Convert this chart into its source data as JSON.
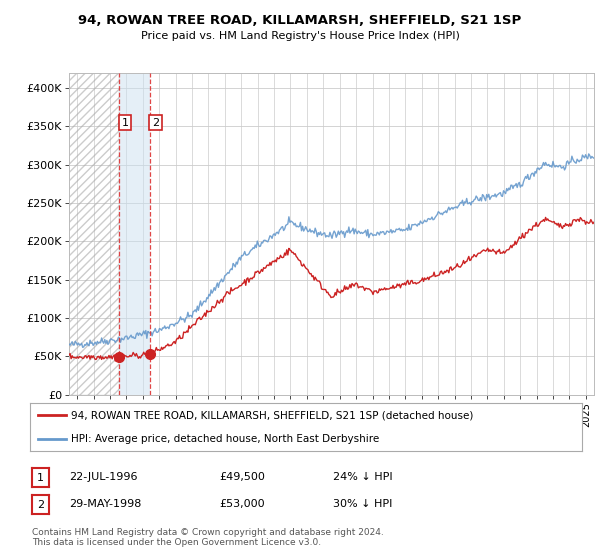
{
  "title1": "94, ROWAN TREE ROAD, KILLAMARSH, SHEFFIELD, S21 1SP",
  "title2": "Price paid vs. HM Land Registry's House Price Index (HPI)",
  "ylabel_ticks": [
    "£0",
    "£50K",
    "£100K",
    "£150K",
    "£200K",
    "£250K",
    "£300K",
    "£350K",
    "£400K"
  ],
  "ytick_vals": [
    0,
    50000,
    100000,
    150000,
    200000,
    250000,
    300000,
    350000,
    400000
  ],
  "ylim": [
    0,
    420000
  ],
  "xlim_start": 1993.5,
  "xlim_end": 2025.5,
  "hpi_color": "#6699cc",
  "price_color": "#cc2222",
  "sale1_date": 1996.55,
  "sale1_price": 49500,
  "sale2_date": 1998.41,
  "sale2_price": 53000,
  "legend_line1": "94, ROWAN TREE ROAD, KILLAMARSH, SHEFFIELD, S21 1SP (detached house)",
  "legend_line2": "HPI: Average price, detached house, North East Derbyshire",
  "table_row1": [
    "1",
    "22-JUL-1996",
    "£49,500",
    "24% ↓ HPI"
  ],
  "table_row2": [
    "2",
    "29-MAY-1998",
    "£53,000",
    "30% ↓ HPI"
  ],
  "footnote": "Contains HM Land Registry data © Crown copyright and database right 2024.\nThis data is licensed under the Open Government Licence v3.0.",
  "sale1_vline": 1996.55,
  "sale2_vline": 1998.41
}
